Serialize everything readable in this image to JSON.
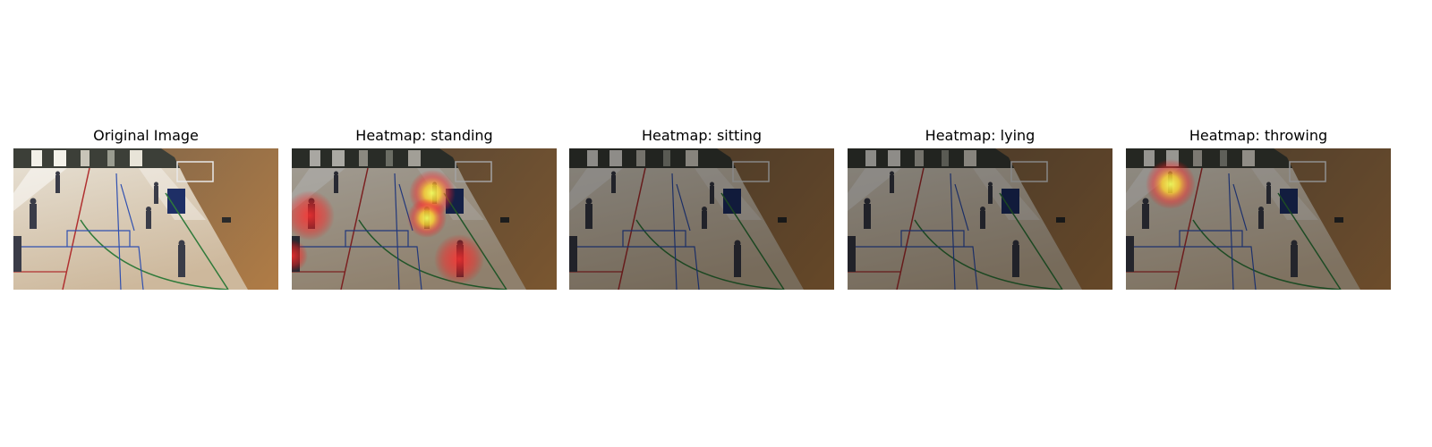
{
  "panels": [
    {
      "title": "Original Image"
    },
    {
      "title": "Heatmap: standing"
    },
    {
      "title": "Heatmap: sitting"
    },
    {
      "title": "Heatmap: lying"
    },
    {
      "title": "Heatmap: throwing"
    }
  ]
}
